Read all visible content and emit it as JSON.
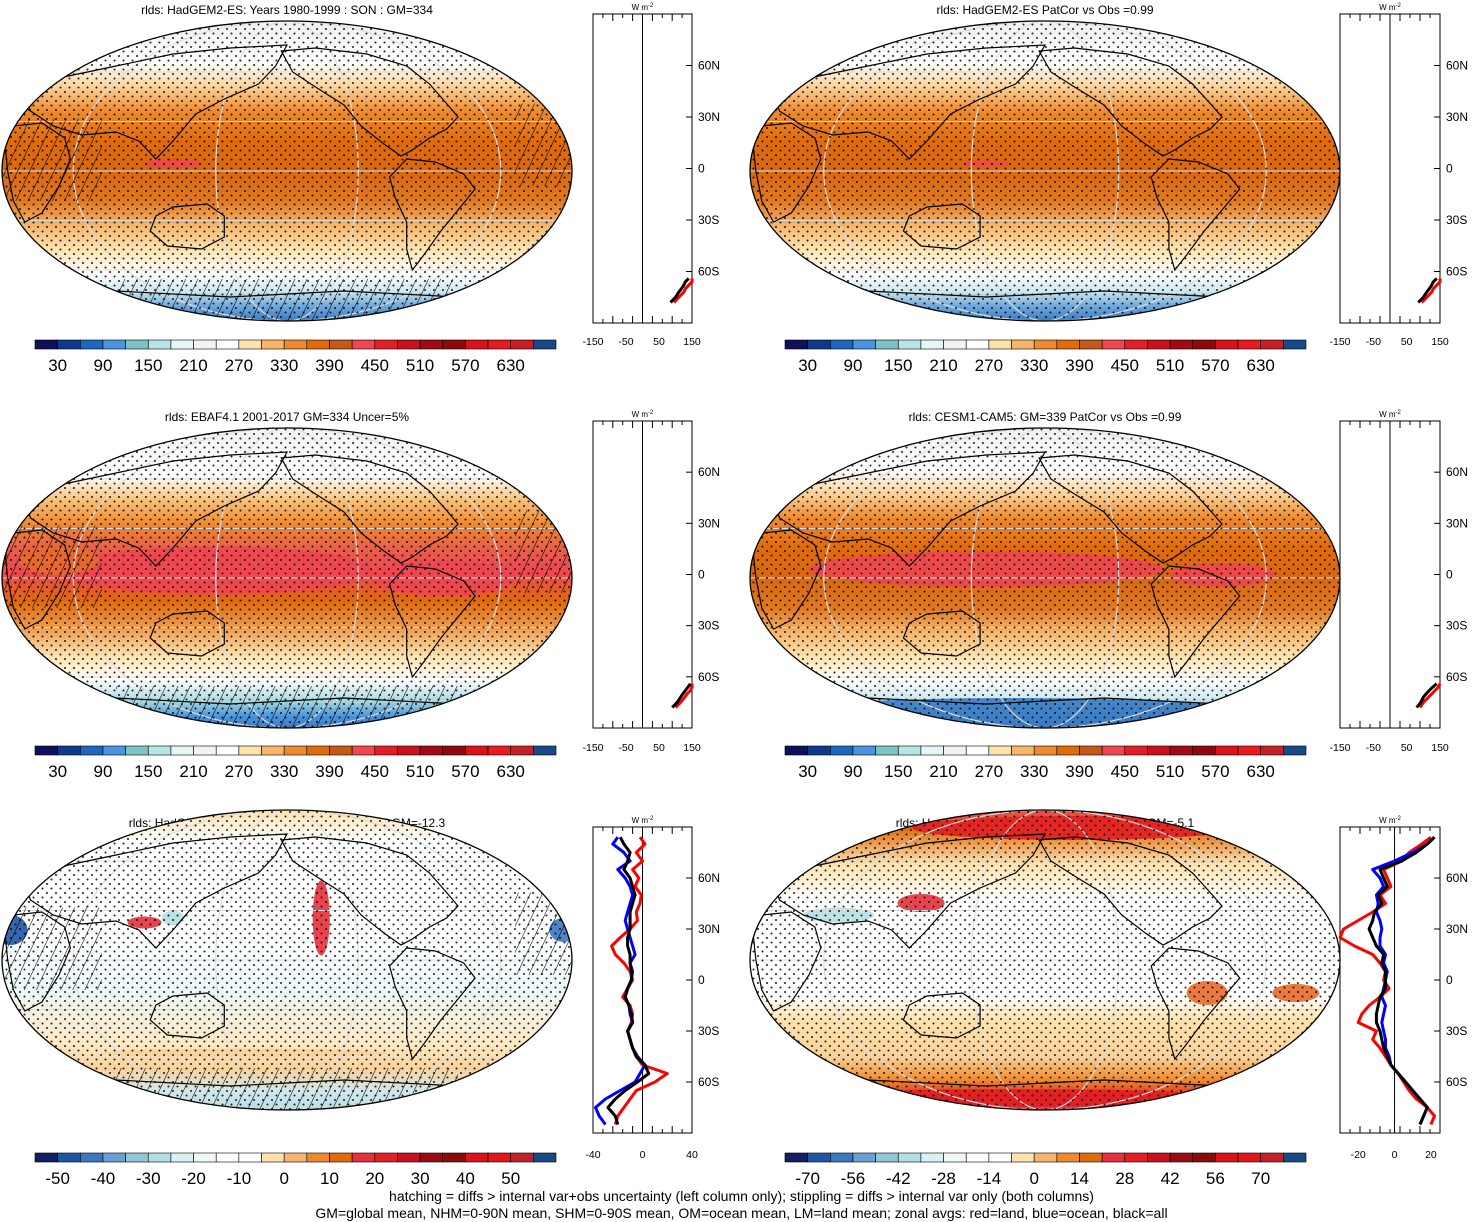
{
  "footer": {
    "line1": "hatching = diffs > internal var+obs uncertainty (left column only); stippling = diffs > internal var only (both columns)",
    "line2": "GM=global mean, NHM=0-90N mean, SHM=0-90S mean, OM=ocean mean, LM=land mean; zonal avgs: red=land, blue=ocean, black=all"
  },
  "colors": {
    "land_line": "#ff0000",
    "ocean_line": "#0000ff",
    "all_line": "#000000",
    "abs_palette": [
      "#10105a",
      "#0e3a8e",
      "#1f66c0",
      "#4a95dd",
      "#7fc2c6",
      "#b7e4e6",
      "#e6f6f7",
      "#f2f2f2",
      "#ffffff",
      "#fde2ae",
      "#f7b66b",
      "#ee8a2e",
      "#e06b0c",
      "#c55a18",
      "#ef4650",
      "#e21f24",
      "#c8121d",
      "#a40a14",
      "#8c0a0a",
      "#d8141a",
      "#e81b1e",
      "#c5202a",
      "#174a87"
    ],
    "diff_palette": [
      "#112066",
      "#1e56a6",
      "#3b78c0",
      "#6ba0d4",
      "#92c6d4",
      "#b5dfe4",
      "#d8f1f3",
      "#eef8f9",
      "#ffffff",
      "#ffffff",
      "#fde2ae",
      "#f6b56c",
      "#ee8a2e",
      "#e06b0c",
      "#e4303a",
      "#e21f24",
      "#c8121d",
      "#9c0b14",
      "#8a0b0c",
      "#d8141a",
      "#e3161c",
      "#c0212b",
      "#174a87"
    ]
  },
  "chart_data": [
    {
      "type": "heatmap",
      "title": "rlds: HadGEM2-ES: Years 1980-1999 : SON : GM=334",
      "colorbar_ticks": [
        "30",
        "90",
        "150",
        "210",
        "270",
        "330",
        "390",
        "450",
        "510",
        "570",
        "630"
      ],
      "zonal_axis": {
        "unit": "W m",
        "unit_sup": "-2",
        "xlim": [
          -150,
          150
        ],
        "xtick_labels": [
          "-150",
          "-50",
          "50",
          "150"
        ],
        "lat_labels": [
          "60N",
          "30N",
          "0",
          "30S",
          "60S"
        ]
      },
      "zonal": {
        "lat": [
          -78,
          -75,
          -72,
          -70,
          -68,
          -66,
          -64
        ],
        "land": [
          95,
          110,
          125,
          130,
          140,
          150,
          150
        ],
        "ocean": [
          null,
          null,
          null,
          null,
          null,
          null,
          null
        ],
        "all": [
          85,
          100,
          110,
          118,
          125,
          130,
          140
        ]
      }
    },
    {
      "type": "heatmap",
      "title": "rlds: HadGEM2-ES PatCor vs Obs =0.99",
      "colorbar_ticks": [
        "30",
        "90",
        "150",
        "210",
        "270",
        "330",
        "390",
        "450",
        "510",
        "570",
        "630"
      ],
      "zonal_axis": {
        "unit": "W m",
        "unit_sup": "-2",
        "xlim": [
          -150,
          150
        ],
        "xtick_labels": [
          "-150",
          "-50",
          "50",
          "150"
        ],
        "lat_labels": [
          "60N",
          "30N",
          "0",
          "30S",
          "60S"
        ]
      },
      "zonal": {
        "lat": [
          -78,
          -75,
          -72,
          -70,
          -68,
          -66,
          -64
        ],
        "land": [
          95,
          110,
          125,
          130,
          140,
          150,
          150
        ],
        "ocean": [
          null,
          null,
          null,
          null,
          null,
          null,
          null
        ],
        "all": [
          85,
          100,
          110,
          118,
          125,
          130,
          140
        ]
      }
    },
    {
      "type": "heatmap",
      "title": "rlds: EBAF4.1 2001-2017 GM=334 Uncer=5%",
      "colorbar_ticks": [
        "30",
        "90",
        "150",
        "210",
        "270",
        "330",
        "390",
        "450",
        "510",
        "570",
        "630"
      ],
      "zonal_axis": {
        "unit": "W m",
        "unit_sup": "-2",
        "xlim": [
          -150,
          150
        ],
        "xtick_labels": [
          "-150",
          "-50",
          "50",
          "150"
        ],
        "lat_labels": [
          "60N",
          "30N",
          "0",
          "30S",
          "60S"
        ]
      },
      "zonal": {
        "lat": [
          -78,
          -75,
          -72,
          -70,
          -68,
          -66,
          -64
        ],
        "land": [
          100,
          115,
          128,
          135,
          145,
          150,
          150
        ],
        "ocean": [
          null,
          null,
          null,
          null,
          null,
          null,
          null
        ],
        "all": [
          90,
          105,
          115,
          122,
          130,
          138,
          145
        ]
      }
    },
    {
      "type": "heatmap",
      "title": "rlds: CESM1-CAM5: GM=339 PatCor vs Obs =0.99",
      "colorbar_ticks": [
        "30",
        "90",
        "150",
        "210",
        "270",
        "330",
        "390",
        "450",
        "510",
        "570",
        "630"
      ],
      "zonal_axis": {
        "unit": "W m",
        "unit_sup": "-2",
        "xlim": [
          -150,
          150
        ],
        "xtick_labels": [
          "-150",
          "-50",
          "50",
          "150"
        ],
        "lat_labels": [
          "60N",
          "30N",
          "0",
          "30S",
          "60S"
        ]
      },
      "zonal": {
        "lat": [
          -78,
          -75,
          -72,
          -70,
          -68,
          -66,
          -64
        ],
        "land": [
          90,
          100,
          115,
          125,
          135,
          145,
          150
        ],
        "ocean": [
          null,
          null,
          null,
          null,
          null,
          null,
          null
        ],
        "all": [
          80,
          92,
          100,
          108,
          118,
          128,
          140
        ]
      }
    },
    {
      "type": "heatmap",
      "title": "rlds: HadGEM2-ES: Bias vs EBAF4.1 2001-2017  GM=-12.3",
      "colorbar_ticks": [
        "-50",
        "-40",
        "-30",
        "-20",
        "-10",
        "0",
        "10",
        "20",
        "30",
        "40",
        "50"
      ],
      "zonal_axis": {
        "unit": "W m",
        "unit_sup": "-2",
        "xlim": [
          -40,
          40
        ],
        "xtick_labels": [
          "-40",
          "0",
          "40"
        ],
        "lat_labels": [
          "60N",
          "30N",
          "0",
          "30S",
          "60S"
        ]
      },
      "zonal": {
        "lat": [
          84,
          80,
          75,
          70,
          65,
          60,
          55,
          50,
          45,
          40,
          35,
          30,
          25,
          20,
          15,
          10,
          5,
          0,
          -5,
          -10,
          -15,
          -20,
          -25,
          -30,
          -35,
          -40,
          -45,
          -50,
          -55,
          -60,
          -65,
          -70,
          -75,
          -80,
          -85
        ],
        "land": [
          -2,
          2,
          -5,
          0,
          -8,
          -3,
          -6,
          -1,
          -2,
          -5,
          -4,
          -10,
          -18,
          -25,
          -22,
          -15,
          -10,
          -8,
          -12,
          -16,
          -10,
          -8,
          -9,
          -12,
          -10,
          -8,
          -5,
          0,
          20,
          10,
          -5,
          -10,
          -15,
          -20,
          -22
        ],
        "ocean": [
          -20,
          -24,
          -15,
          -10,
          -20,
          -14,
          -10,
          -8,
          -10,
          -12,
          -14,
          -12,
          -10,
          -8,
          -6,
          -10,
          -8,
          -9,
          -12,
          -14,
          -11,
          -10,
          -8,
          -12,
          -10,
          -8,
          -4,
          2,
          -2,
          -6,
          -18,
          -30,
          -38,
          -35,
          -30
        ],
        "all": [
          -18,
          -15,
          -10,
          -12,
          -15,
          -10,
          -8,
          -6,
          -8,
          -10,
          -10,
          -10,
          -12,
          -12,
          -10,
          -10,
          -9,
          -9,
          -12,
          -14,
          -11,
          -9,
          -8,
          -12,
          -10,
          -8,
          -5,
          2,
          5,
          -4,
          -14,
          -22,
          -28,
          -22,
          -20
        ]
      }
    },
    {
      "type": "heatmap",
      "title": "rlds: HadGEM2-ES: Change vs CESM1-CAM5 GM=-5.1",
      "colorbar_ticks": [
        "-70",
        "-56",
        "-42",
        "-28",
        "-14",
        "0",
        "14",
        "28",
        "42",
        "56",
        "70"
      ],
      "zonal_axis": {
        "unit": "W m",
        "unit_sup": "-2",
        "xlim": [
          -30,
          25
        ],
        "xtick_labels": [
          "-20",
          "0",
          "20"
        ],
        "lat_labels": [
          "60N",
          "30N",
          "0",
          "30S",
          "60S"
        ]
      },
      "zonal": {
        "lat": [
          84,
          80,
          75,
          70,
          65,
          60,
          55,
          50,
          45,
          40,
          35,
          30,
          25,
          20,
          15,
          10,
          5,
          0,
          -5,
          -10,
          -15,
          -20,
          -25,
          -30,
          -35,
          -40,
          -45,
          -50,
          -55,
          -60,
          -65,
          -70,
          -75,
          -80,
          -85
        ],
        "land": [
          20,
          15,
          8,
          4,
          -6,
          -4,
          -2,
          -8,
          -5,
          -12,
          -20,
          -28,
          -30,
          -22,
          -12,
          -8,
          -5,
          -6,
          -3,
          -8,
          -14,
          -18,
          -20,
          -10,
          -12,
          -8,
          -5,
          -2,
          2,
          5,
          8,
          12,
          18,
          22,
          20
        ],
        "ocean": [
          22,
          18,
          10,
          0,
          -12,
          -8,
          -6,
          -10,
          -9,
          -10,
          -8,
          -7,
          -8,
          -8,
          -5,
          -6,
          -4,
          -5,
          -6,
          -7,
          -5,
          -6,
          -7,
          -6,
          -5,
          -5,
          -3,
          -2,
          2,
          6,
          10,
          14,
          18,
          16,
          14
        ],
        "all": [
          22,
          18,
          12,
          4,
          -8,
          -6,
          -4,
          -9,
          -7,
          -11,
          -12,
          -14,
          -12,
          -10,
          -6,
          -7,
          -5,
          -5,
          -5,
          -8,
          -9,
          -10,
          -10,
          -8,
          -7,
          -6,
          -4,
          -2,
          2,
          6,
          10,
          14,
          18,
          16,
          14
        ]
      }
    }
  ]
}
